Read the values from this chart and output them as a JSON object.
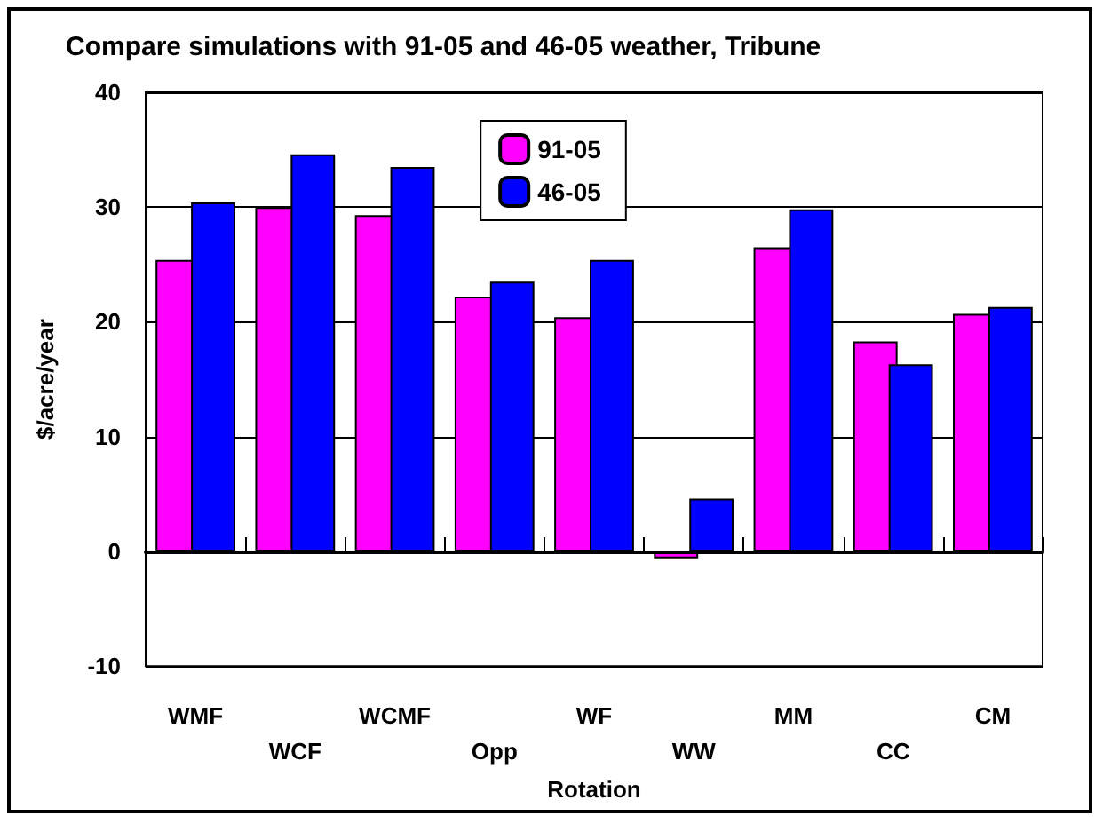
{
  "chart_data": {
    "type": "bar",
    "title": "Compare simulations with 91-05 and 46-05 weather, Tribune",
    "xlabel": "Rotation",
    "ylabel": "$/acre/year",
    "categories": [
      "WMF",
      "WCF",
      "WCMF",
      "Opp",
      "WF",
      "WW",
      "MM",
      "CC",
      "CM"
    ],
    "series": [
      {
        "name": "91-05",
        "color": "#ff00ff",
        "values": [
          25.4,
          30.0,
          29.3,
          22.2,
          20.4,
          -0.6,
          26.5,
          18.3,
          20.7
        ]
      },
      {
        "name": "46-05",
        "color": "#0000ff",
        "values": [
          30.4,
          34.6,
          33.5,
          23.5,
          25.4,
          4.6,
          29.8,
          16.3,
          21.3
        ]
      }
    ],
    "ylim": [
      -10,
      40
    ],
    "yticks": [
      -10,
      0,
      10,
      20,
      30,
      40
    ],
    "grid": "y",
    "legend": "top"
  }
}
